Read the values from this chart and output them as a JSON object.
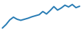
{
  "x": [
    0,
    1,
    2,
    3,
    4,
    5,
    6,
    7,
    8,
    9,
    10,
    11,
    12,
    13,
    14,
    15,
    16,
    17,
    18,
    19,
    20,
    21
  ],
  "y": [
    5.0,
    10.0,
    16.5,
    20.5,
    17.5,
    16.0,
    17.5,
    19.0,
    21.0,
    22.5,
    24.0,
    28.5,
    25.0,
    30.0,
    35.5,
    30.5,
    33.5,
    37.5,
    35.0,
    38.5,
    34.0,
    36.0
  ],
  "line_color": "#2a7db5",
  "line_width": 1.5,
  "background_color": "#ffffff",
  "ylim_min": 3,
  "ylim_max": 44
}
